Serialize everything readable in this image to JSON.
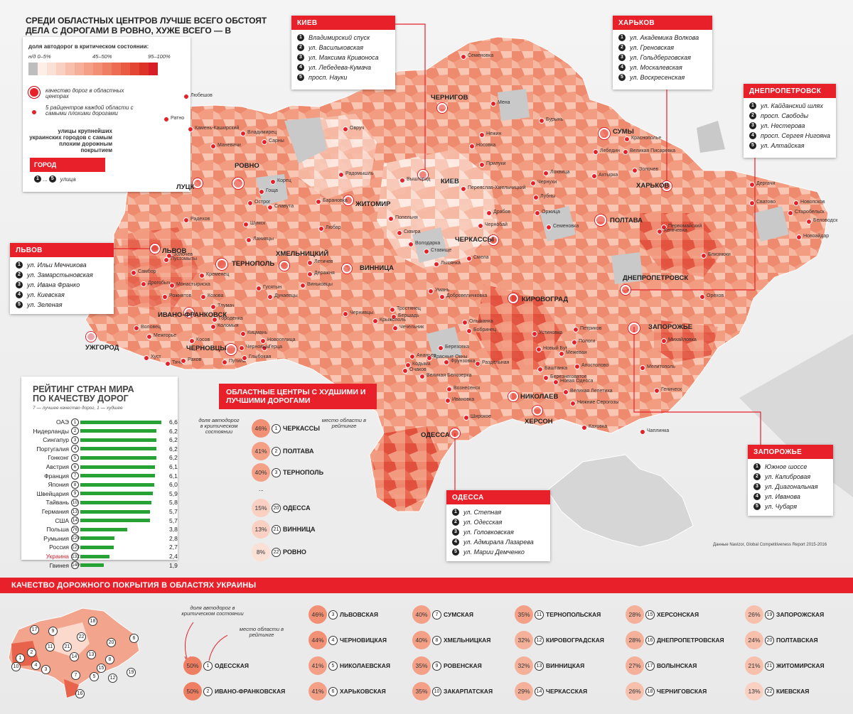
{
  "title": "СРЕДИ ОБЛАСТНЫХ ЦЕНТРОВ ЛУЧШЕ ВСЕГО ОБСТОЯТ ДЕЛА С ДОРОГАМИ В РОВНО, ХУЖЕ ВСЕГО — В ЧЕРКАССАХ",
  "legend": {
    "heading": "доля автодорог в критическом состоянии:",
    "ticks": [
      "н/д 0–5%",
      "45–50%",
      "95–100%"
    ],
    "ramp_colors": [
      "#bdbdbd",
      "#fdeee8",
      "#fbe0d6",
      "#f9d0c2",
      "#f7c0ad",
      "#f5b09a",
      "#f3a087",
      "#f19074",
      "#ef7f62",
      "#ec6d51",
      "#e85a41",
      "#e34632",
      "#dd3226",
      "#d81d26"
    ],
    "oblast_center": "качество дорог в областных центрах",
    "raion_center": "5 райцентров каждой области с самыми плохими дорогами",
    "streets": "улицы крупнейших украинских городов с самым плохим дорожным покрытием",
    "city_label": "ГОРОД",
    "street_n1": "1",
    "street_to": "...",
    "street_n5": "5",
    "street_word": "улица"
  },
  "cities": [
    {
      "name": "КИЕВ",
      "streets": [
        "Владимирский спуск",
        "ул. Васильковская",
        "ул. Максима Кривоноса",
        "ул. Лебедева-Кумача",
        "просп. Науки"
      ]
    },
    {
      "name": "ХАРЬКОВ",
      "streets": [
        "ул. Академика Волкова",
        "ул. Греновская",
        "ул. Гольдберговская",
        "ул. Москалевская",
        "ул. Воскресенская"
      ]
    },
    {
      "name": "ДНЕПРОПЕТРОВСК",
      "streets": [
        "ул. Кайданский шлях",
        "просп. Свободы",
        "ул. Нестерова",
        "просп. Сергея Нигояна",
        "ул. Алтайская"
      ]
    },
    {
      "name": "ЛЬВОВ",
      "streets": [
        "ул. Ильи Мечникова",
        "ул. Замарстыновская",
        "ул. Ивана Франко",
        "ул. Киевская",
        "ул. Зеленая"
      ]
    },
    {
      "name": "ЗАПОРОЖЬЕ",
      "streets": [
        "Южное шоссе",
        "ул. Калибровая",
        "ул. Диагональная",
        "ул. Иванова",
        "ул. Чубаря"
      ]
    },
    {
      "name": "ОДЕССА",
      "streets": [
        "ул. Степная",
        "ул. Одесская",
        "ул. Головковская",
        "ул. Адмирала Лазарева",
        "ул. Марии Демченко"
      ]
    }
  ],
  "map_labels": {
    "oblast_centers": [
      "ЛУЦК",
      "РОВНО",
      "ЖИТОМИР",
      "КИЕВ",
      "ЧЕРНИГОВ",
      "СУМЫ",
      "ХАРЬКОВ",
      "ПОЛТАВА",
      "ЧЕРКАССЫ",
      "ЛЬВОВ",
      "ТЕРНОПОЛЬ",
      "ХМЕЛЬНИЦКИЙ",
      "ВИННИЦА",
      "КИРОВОГРАД",
      "ДНЕПРОПЕТРОВСК",
      "ЗАПОРОЖЬЕ",
      "ИВАНО-ФРАНКОВСК",
      "УЖГОРОД",
      "ЧЕРНОВЦЫ",
      "НИКОЛАЕВ",
      "ХЕРСОН",
      "ОДЕССА"
    ],
    "towns": [
      "Семеновка",
      "Мена",
      "Бурынь",
      "Нежин",
      "Носовка",
      "Прилуки",
      "Краснополье",
      "Лебедин",
      "Великая Писаревка",
      "Ахтырка",
      "Золочев",
      "Лохвица",
      "Чернухи",
      "Лубны",
      "Оржица",
      "Семеновка",
      "Дергачи",
      "Новопсков",
      "Сватово",
      "Старобельск",
      "Беловодск",
      "Новоайдар",
      "Первомайский",
      "Кегичевка",
      "Близнюки",
      "Переяслав-Хмельницкий",
      "Драбов",
      "Чернобай",
      "Смела",
      "Лысянка",
      "Ставище",
      "Володарка",
      "Сквира",
      "Попельня",
      "Радомышль",
      "Вышгород",
      "Овруч",
      "Любешов",
      "Ратно",
      "Камень-Каширский",
      "Владимирец",
      "Сарны",
      "Маневичи",
      "Корец",
      "Гоща",
      "Острог",
      "Славута",
      "Барановка",
      "Шумск",
      "Ланивцы",
      "Любар",
      "Радехов",
      "Золочев",
      "Пустомыты",
      "Самбор",
      "Дрогобыч",
      "Рожнятов",
      "Кременец",
      "Летичев",
      "Деражня",
      "Виньковцы",
      "Гусятын",
      "Монастыриска",
      "Козова",
      "Тлумач",
      "Городенка",
      "Коломыя",
      "Косов",
      "Кицмань",
      "Новоселица",
      "Герца",
      "Путила",
      "Глыбокая",
      "Дунаевцы",
      "Черновцы",
      "Хуст",
      "Тячев",
      "Рахов",
      "Воловец",
      "Межгорье",
      "Умань",
      "Тростянец",
      "Бершадь",
      "Крыжополь",
      "Чечельник",
      "Чернивцы",
      "Добровеличковка",
      "Ольшанка",
      "Бобринец",
      "Устиновка",
      "Петриков",
      "Новый Буг",
      "Баштанка",
      "Березнеговатое",
      "Вознесенск",
      "Ивановка",
      "Березовка",
      "Раздельная",
      "Новая Одесса",
      "Великая Лепетиха",
      "Нижние Серогозы",
      "Каховка",
      "Чаплинка",
      "Геническ",
      "Мелитополь",
      "Михайловка",
      "Орехов",
      "Пологи",
      "Межевая",
      "Апостолово",
      "Широкое",
      "Великая Белозерка",
      "Очаков",
      "Фрунзовка",
      "Красные Окны",
      "Ананьев",
      "Кодыма",
      "Саврань",
      "Любашевка"
    ],
    "source": "Данные Navizor, Global Competitiveness Report 2015-2016"
  },
  "ranking": {
    "title": "РЕЙТИНГ СТРАН МИРА ПО КАЧЕСТВУ ДОРОГ",
    "subtitle": "7 — лучшее качество дорог, 1 — худшее",
    "rows": [
      {
        "country": "ОАЭ",
        "rank": "1",
        "value": 6.6
      },
      {
        "country": "Нидерланды",
        "rank": "2",
        "value": 6.2
      },
      {
        "country": "Сингапур",
        "rank": "3",
        "value": 6.2
      },
      {
        "country": "Португалия",
        "rank": "4",
        "value": 6.2
      },
      {
        "country": "Гонконг",
        "rank": "5",
        "value": 6.2
      },
      {
        "country": "Австрия",
        "rank": "6",
        "value": 6.1
      },
      {
        "country": "Франция",
        "rank": "7",
        "value": 6.1
      },
      {
        "country": "Япония",
        "rank": "8",
        "value": 6.0
      },
      {
        "country": "Швейцария",
        "rank": "9",
        "value": 5.9
      },
      {
        "country": "Тайвань",
        "rank": "10",
        "value": 5.8
      },
      {
        "country": "Германия",
        "rank": "13",
        "value": 5.7
      },
      {
        "country": "США",
        "rank": "14",
        "value": 5.7
      },
      {
        "country": "Польша",
        "rank": "76",
        "value": 3.8
      },
      {
        "country": "Румыния",
        "rank": "120",
        "value": 2.8
      },
      {
        "country": "Россия",
        "rank": "123",
        "value": 2.7
      },
      {
        "country": "Украина",
        "rank": "132",
        "value": 2.4
      },
      {
        "country": "Гвинея",
        "rank": "140",
        "value": 1.9
      }
    ],
    "value_labels": [
      "6,6",
      "6,2",
      "6,2",
      "6,2",
      "6,2",
      "6,1",
      "6,1",
      "6,0",
      "5,9",
      "5,8",
      "5,7",
      "5,7",
      "3,8",
      "2,8",
      "2,7",
      "2,4",
      "1,9"
    ]
  },
  "worst_best": {
    "title": "ОБЛАСТНЫЕ ЦЕНТРЫ С ХУДШИМИ И ЛУЧШИМИ ДОРОГАМИ",
    "note_share": "доля автодорог в критическом состоянии",
    "note_rank": "место области в рейтинге",
    "ellipsis": "...",
    "rows": [
      {
        "pct": "46%",
        "rank": "1",
        "name": "ЧЕРКАССЫ"
      },
      {
        "pct": "41%",
        "rank": "2",
        "name": "ПОЛТАВА"
      },
      {
        "pct": "40%",
        "rank": "3",
        "name": "ТЕРНОПОЛЬ"
      },
      {
        "pct": "15%",
        "rank": "20",
        "name": "ОДЕССА"
      },
      {
        "pct": "13%",
        "rank": "21",
        "name": "ВИННИЦА"
      },
      {
        "pct": "8%",
        "rank": "22",
        "name": "РОВНО"
      }
    ]
  },
  "regions": {
    "title": "КАЧЕСТВО ДОРОЖНОГО ПОКРЫТИЯ В ОБЛАСТЯХ УКРАИНЫ",
    "note_share": "доля автодорог в критическом состоянии",
    "note_rank": "место области в рейтинге",
    "mini_ranks": [
      "17",
      "9",
      "18",
      "6",
      "22",
      "20",
      "15",
      "13",
      "11",
      "2",
      "1",
      "4",
      "3",
      "14",
      "7",
      "8",
      "5",
      "19",
      "12",
      "16",
      "10",
      "21"
    ],
    "rows": [
      {
        "pct": "50%",
        "rank": "1",
        "name": "ОДЕССКАЯ"
      },
      {
        "pct": "50%",
        "rank": "2",
        "name": "ИВАНО-ФРАНКОВСКАЯ"
      },
      {
        "pct": "46%",
        "rank": "3",
        "name": "ЛЬВОВСКАЯ"
      },
      {
        "pct": "44%",
        "rank": "4",
        "name": "ЧЕРНОВИЦКАЯ"
      },
      {
        "pct": "41%",
        "rank": "5",
        "name": "НИКОЛАЕВСКАЯ"
      },
      {
        "pct": "41%",
        "rank": "6",
        "name": "ХАРЬКОВСКАЯ"
      },
      {
        "pct": "40%",
        "rank": "7",
        "name": "СУМСКАЯ"
      },
      {
        "pct": "40%",
        "rank": "8",
        "name": "ХМЕЛЬНИЦКАЯ"
      },
      {
        "pct": "35%",
        "rank": "9",
        "name": "РОВЕНСКАЯ"
      },
      {
        "pct": "35%",
        "rank": "10",
        "name": "ЗАКАРПАТСКАЯ"
      },
      {
        "pct": "35%",
        "rank": "11",
        "name": "ТЕРНОПОЛЬСКАЯ"
      },
      {
        "pct": "32%",
        "rank": "12",
        "name": "КИРОВОГРАДСКАЯ"
      },
      {
        "pct": "32%",
        "rank": "13",
        "name": "ВИННИЦКАЯ"
      },
      {
        "pct": "29%",
        "rank": "14",
        "name": "ЧЕРКАССКАЯ"
      },
      {
        "pct": "28%",
        "rank": "15",
        "name": "ХЕРСОНСКАЯ"
      },
      {
        "pct": "28%",
        "rank": "16",
        "name": "ДНЕПРОПЕТРОВСКАЯ"
      },
      {
        "pct": "27%",
        "rank": "17",
        "name": "ВОЛЫНСКАЯ"
      },
      {
        "pct": "26%",
        "rank": "18",
        "name": "ЧЕРНИГОВСКАЯ"
      },
      {
        "pct": "26%",
        "rank": "19",
        "name": "ЗАПОРОЖСКАЯ"
      },
      {
        "pct": "24%",
        "rank": "20",
        "name": "ПОЛТАВСКАЯ"
      },
      {
        "pct": "21%",
        "rank": "21",
        "name": "ЖИТОМИРСКАЯ"
      },
      {
        "pct": "13%",
        "rank": "22",
        "name": "КИЕВСКАЯ"
      }
    ]
  },
  "colors": {
    "accent": "#e8202a",
    "bar": "#27a335",
    "ukraine_highlight": "#e8202a",
    "nodata": "#bdbdbd",
    "sea": "#efefef"
  }
}
